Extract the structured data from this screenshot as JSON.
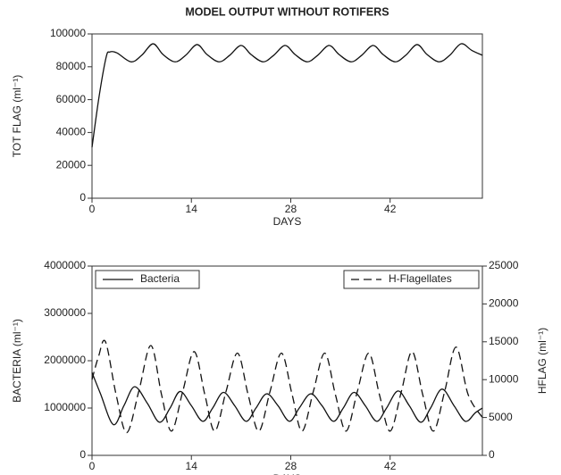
{
  "chart_data": [
    {
      "type": "line",
      "title": "MODEL OUTPUT WITHOUT ROTIFERS",
      "ylabel": "TOT FLAG (ml⁻¹)",
      "xlabel": "DAYS",
      "xlim": [
        0,
        55
      ],
      "xticks": [
        0,
        14,
        28,
        42
      ],
      "ylim": [
        0,
        100000
      ],
      "yticks": [
        0,
        20000,
        40000,
        60000,
        80000,
        100000
      ],
      "series": [
        {
          "color": "#111111",
          "linestyle": "solid",
          "x": [
            0,
            1,
            2,
            2.5,
            3.5,
            5.5,
            7,
            8.6,
            10,
            11.7,
            13.2,
            14.8,
            16.2,
            17.9,
            19.4,
            21,
            22.4,
            24.1,
            25.6,
            27.2,
            28.6,
            30.3,
            31.8,
            33.4,
            34.8,
            36.5,
            38,
            39.6,
            41,
            42.7,
            44.2,
            45.8,
            47.2,
            48.9,
            50.4,
            52,
            53.5,
            55
          ],
          "values": [
            31000,
            62000,
            86000,
            89000,
            88500,
            83000,
            87000,
            94000,
            87500,
            83000,
            87000,
            93500,
            87500,
            83000,
            87000,
            93000,
            87500,
            83000,
            87000,
            93000,
            87500,
            83000,
            87000,
            93000,
            87500,
            83000,
            87000,
            93000,
            87500,
            83000,
            87000,
            93500,
            87500,
            83000,
            87000,
            94000,
            90000,
            87000
          ]
        }
      ]
    },
    {
      "type": "line",
      "ylabel": "BACTERIA (ml⁻¹)",
      "y2label": "HFLAG (ml⁻¹)",
      "xlabel": "DAYS",
      "xlim": [
        0,
        55
      ],
      "xticks": [
        0,
        14,
        28,
        42
      ],
      "ylim": [
        0,
        4000000
      ],
      "yticks": [
        0,
        1000000,
        2000000,
        3000000,
        4000000
      ],
      "y2lim": [
        0,
        25000
      ],
      "y2ticks": [
        0,
        5000,
        10000,
        15000,
        20000,
        25000
      ],
      "series": [
        {
          "name": "Bacteria",
          "color": "#111111",
          "linestyle": "solid",
          "legend": "upper left",
          "x": [
            0,
            1.2,
            3,
            4.5,
            6,
            7.8,
            9.5,
            11,
            12.4,
            14,
            15.6,
            17,
            18.5,
            20.1,
            21.7,
            23.1,
            24.6,
            26.2,
            27.8,
            29.2,
            30.8,
            32.4,
            34,
            35.4,
            36.9,
            38.5,
            40.1,
            41.5,
            43.1,
            44.7,
            46.3,
            47.7,
            49.3,
            51,
            52.6,
            54,
            55
          ],
          "values": [
            1750000,
            1300000,
            650000,
            1050000,
            1450000,
            1100000,
            700000,
            1000000,
            1350000,
            1050000,
            720000,
            1000000,
            1330000,
            1050000,
            720000,
            1000000,
            1300000,
            1050000,
            720000,
            1000000,
            1300000,
            1050000,
            720000,
            1000000,
            1330000,
            1050000,
            720000,
            1000000,
            1360000,
            1050000,
            700000,
            1000000,
            1400000,
            1050000,
            720000,
            900000,
            1000000
          ]
        },
        {
          "name": "H-Flagellates",
          "color": "#111111",
          "linestyle": "dashed",
          "legend": "upper right",
          "axis": "y2",
          "x": [
            0,
            0.9,
            1.9,
            3.4,
            4.9,
            6.6,
            8.3,
            9.8,
            11.2,
            12.8,
            14.4,
            15.9,
            17.3,
            18.9,
            20.5,
            22,
            23.5,
            25.1,
            26.7,
            28.2,
            29.6,
            31.2,
            32.8,
            34.3,
            35.8,
            37.4,
            39,
            40.5,
            42,
            43.6,
            45.1,
            46.6,
            48.1,
            49.7,
            51.3,
            53,
            55
          ],
          "values": [
            10000,
            13000,
            15000,
            8000,
            3000,
            8500,
            14500,
            8000,
            3200,
            8500,
            13700,
            8000,
            3200,
            8500,
            13500,
            8000,
            3200,
            8500,
            13500,
            8000,
            3200,
            8500,
            13500,
            8000,
            3200,
            8500,
            13500,
            8000,
            3200,
            8500,
            13700,
            8000,
            3200,
            8500,
            14300,
            8000,
            5000
          ]
        }
      ]
    }
  ]
}
